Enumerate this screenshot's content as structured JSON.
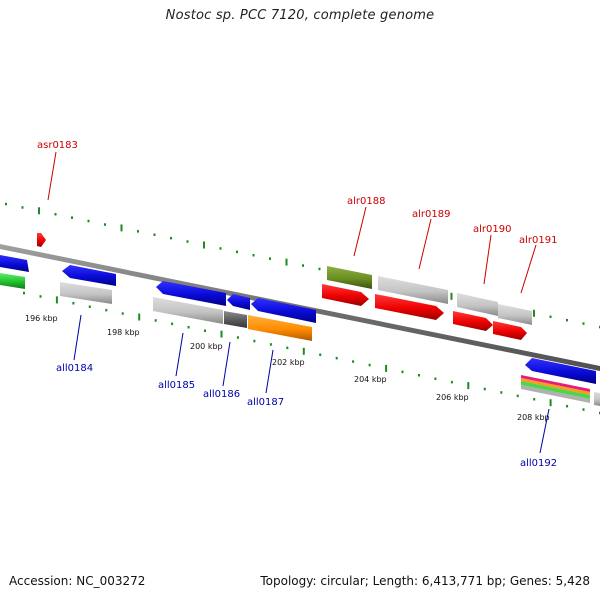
{
  "title": "Nostoc sp. PCC 7120, complete genome",
  "footer": {
    "accession": "Accession: NC_003272",
    "summary": "Topology: circular; Length: 6,413,771 bp; Genes: 5,428"
  },
  "colors": {
    "backbone": "#7a7a7a",
    "forward_label": "#cc0000",
    "reverse_label": "#0000aa",
    "tick": "#1f8a1f",
    "blue": "#1010e0",
    "red": "#ee0000",
    "green": "#2ecc40",
    "olive": "#6b8e23",
    "orange": "#ff8c00",
    "grey": "#bdbdbd",
    "dark_grey": "#5a5a5a"
  },
  "scale_labels": [
    "196 kbp",
    "198 kbp",
    "200 kbp",
    "202 kbp",
    "204 kbp",
    "206 kbp",
    "208 kbp"
  ],
  "forward_genes": [
    "asr0183",
    "alr0188",
    "alr0189",
    "alr0190",
    "alr0191"
  ],
  "reverse_genes": [
    "all0184",
    "all0185",
    "all0186",
    "all0187",
    "all0192"
  ]
}
